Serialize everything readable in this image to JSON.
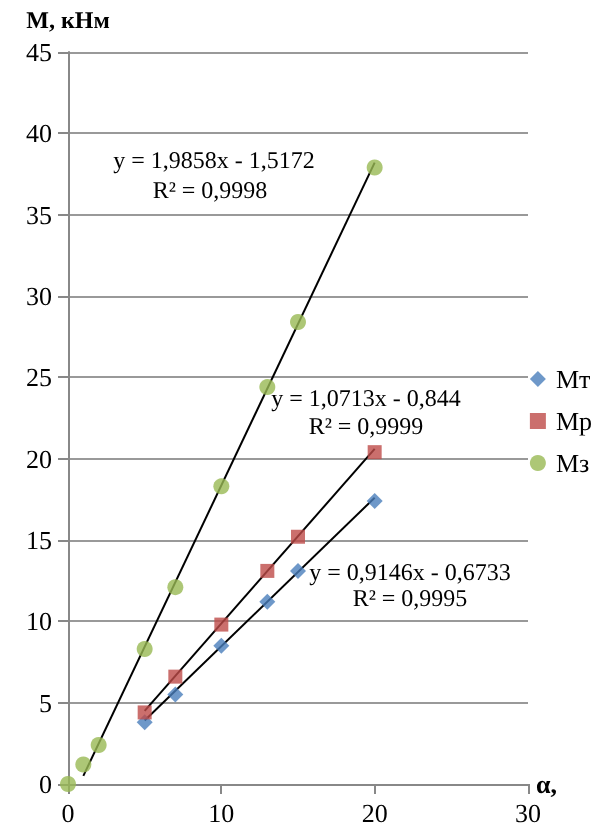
{
  "chart_data": {
    "type": "scatter",
    "xlabel": "α,",
    "ylabel": "М, кНм",
    "xlim": [
      0,
      30
    ],
    "xticks": [
      0,
      10,
      20,
      30
    ],
    "ylim": [
      0,
      45
    ],
    "yticks": [
      0,
      5,
      10,
      15,
      20,
      25,
      30,
      35,
      40,
      45
    ],
    "grid": "y",
    "legend": "right",
    "series": [
      {
        "name": "Мт",
        "marker": "diamond",
        "color": "#4a7ebb",
        "x": [
          5,
          7,
          10,
          13,
          15,
          20
        ],
        "values": [
          3.8,
          5.5,
          8.5,
          11.2,
          13.1,
          17.4
        ]
      },
      {
        "name": "Мр",
        "marker": "square",
        "color": "#be4b48",
        "x": [
          5,
          7,
          10,
          13,
          15,
          20
        ],
        "values": [
          4.4,
          6.6,
          9.8,
          13.1,
          15.2,
          20.4
        ]
      },
      {
        "name": "Мз",
        "marker": "circle",
        "color": "#98b954",
        "x": [
          0,
          1,
          2,
          5,
          7,
          10,
          13,
          15,
          20
        ],
        "values": [
          0,
          1.2,
          2.4,
          8.3,
          12.1,
          18.3,
          24.4,
          28.4,
          37.9
        ]
      },
      {
        "type": "line",
        "marker": "none",
        "color": "#000000",
        "x": [
          1,
          20
        ],
        "values": [
          0.5,
          38.2
        ]
      },
      {
        "type": "line",
        "marker": "none",
        "color": "#000000",
        "x": [
          5,
          20
        ],
        "values": [
          4.5,
          20.6
        ]
      },
      {
        "type": "line",
        "marker": "none",
        "color": "#000000",
        "x": [
          5,
          20
        ],
        "values": [
          3.9,
          17.6
        ]
      }
    ],
    "annotations": [
      "y = 1,9858x - 1,5172",
      "R² = 0,9998",
      "y = 1,0713x - 0,844",
      "R² = 0,9999",
      "y = 0,9146x - 0,6733",
      "R² = 0,9995"
    ]
  }
}
